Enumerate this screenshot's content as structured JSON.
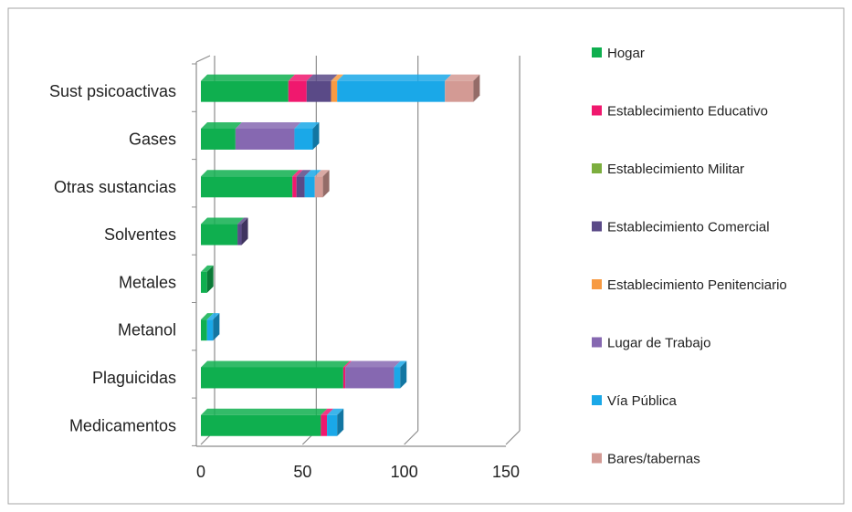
{
  "chart_data": {
    "type": "bar",
    "orientation": "horizontal",
    "stacked": true,
    "three_d": true,
    "title": "",
    "xlabel": "",
    "ylabel": "",
    "xlim": [
      0,
      150
    ],
    "x_ticks": [
      "0",
      "50",
      "100",
      "150"
    ],
    "grid": true,
    "legend_position": "right",
    "categories": [
      "Sust psicoactivas",
      "Gases",
      "Otras sustancias",
      "Solventes",
      "Metales",
      "Metanol",
      "Plaguicidas",
      "Medicamentos"
    ],
    "series": [
      {
        "name": "Hogar",
        "color": "#0FAF4F",
        "values": [
          43,
          17,
          45,
          18,
          3,
          3,
          70,
          59
        ]
      },
      {
        "name": "Establecimiento Educativo",
        "color": "#F0186E",
        "values": [
          9,
          0,
          2,
          0,
          0,
          0,
          1,
          3
        ]
      },
      {
        "name": "Establecimiento Militar",
        "color": "#7CAE3E",
        "values": [
          0,
          0,
          0,
          0,
          0,
          0,
          0,
          0
        ]
      },
      {
        "name": "Establecimiento Comercial",
        "color": "#5A4A87",
        "values": [
          12,
          0,
          4,
          2,
          0,
          0,
          0,
          0
        ]
      },
      {
        "name": "Establecimiento Penitenciario",
        "color": "#F79A42",
        "values": [
          3,
          0,
          0,
          0,
          0,
          0,
          0,
          0
        ]
      },
      {
        "name": "Lugar de Trabajo",
        "color": "#8668B1",
        "values": [
          0,
          29,
          0,
          0,
          0,
          0,
          24,
          0
        ]
      },
      {
        "name": "Vía Pública",
        "color": "#1AA8E8",
        "values": [
          53,
          9,
          5,
          0,
          0,
          3,
          3,
          5
        ]
      },
      {
        "name": "Bares/tabernas",
        "color": "#D39A94",
        "values": [
          14,
          0,
          4,
          0,
          0,
          0,
          0,
          0
        ]
      }
    ]
  }
}
